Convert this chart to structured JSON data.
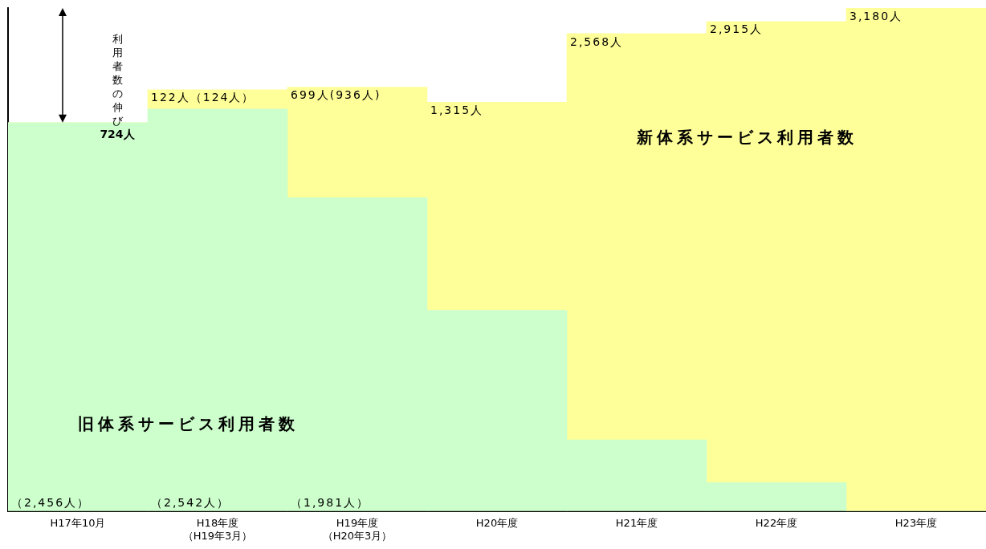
{
  "chart_data": {
    "type": "bar",
    "stacked": true,
    "categories": [
      "H17年10月",
      "H18年度（H19年3月）",
      "H19年度（H20年3月）",
      "H20年度",
      "H21年度",
      "H22年度",
      "H23年度"
    ],
    "series": [
      {
        "name": "旧体系サービス利用者数",
        "color": "#ccffcc",
        "values": [
          2456,
          2542,
          1981,
          1270,
          450,
          180,
          0
        ],
        "value_labels": [
          "（2,456人）",
          "（2,542人）",
          "（1,981人）",
          null,
          null,
          null,
          null
        ]
      },
      {
        "name": "新体系サービス利用者数",
        "color": "#ffff99",
        "values": [
          0,
          122,
          699,
          1315,
          2568,
          2915,
          3180
        ],
        "value_labels": [
          null,
          "122人（124人）",
          "699人(936人)",
          "1,315人",
          "2,568人",
          "2,915人",
          "3,180人"
        ]
      }
    ],
    "annotations": [
      "利用者数の伸び",
      "724人"
    ]
  }
}
